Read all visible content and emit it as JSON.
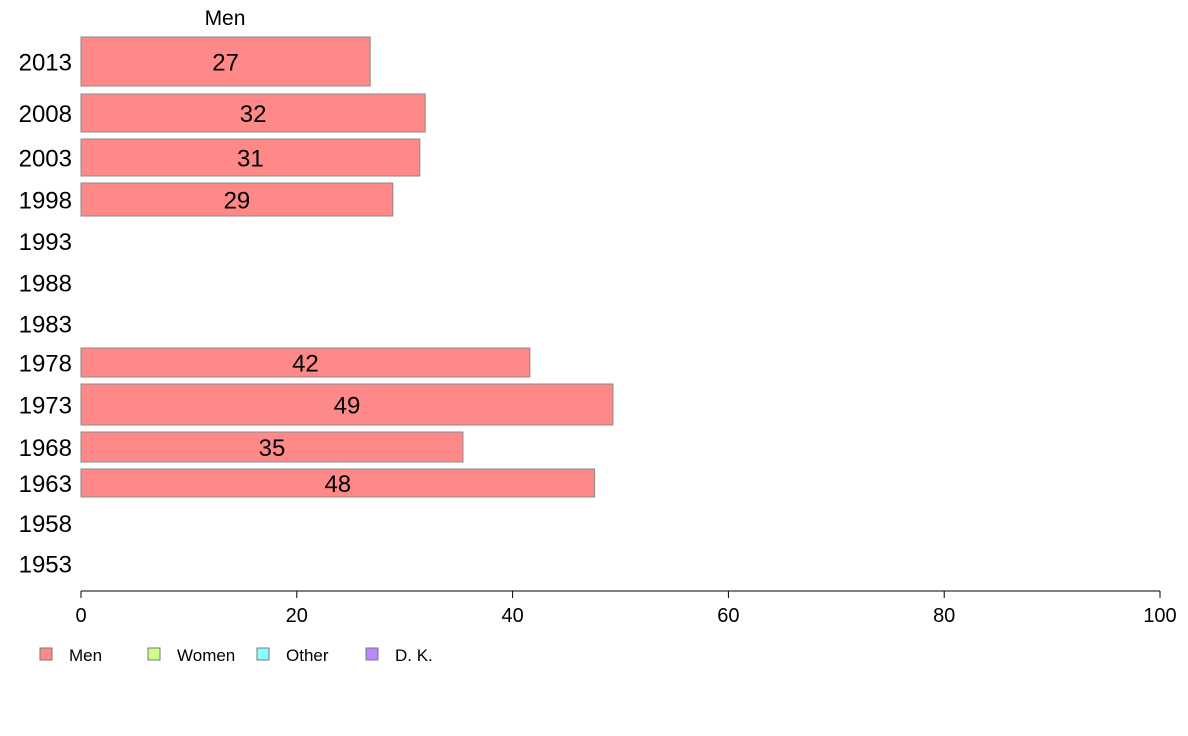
{
  "chart_data": {
    "type": "bar",
    "orientation": "horizontal",
    "header": "Men",
    "categories": [
      "2013",
      "2008",
      "2003",
      "1998",
      "1993",
      "1988",
      "1983",
      "1978",
      "1973",
      "1968",
      "1963",
      "1958",
      "1953"
    ],
    "series": [
      {
        "name": "Men",
        "color": "#ff8888",
        "values": [
          26.8,
          31.9,
          31.4,
          28.9,
          null,
          null,
          null,
          41.6,
          49.3,
          35.4,
          47.6,
          null,
          null
        ],
        "labels": [
          "27",
          "32",
          "31",
          "29",
          "",
          "",
          "",
          "42",
          "49",
          "35",
          "48",
          "",
          ""
        ]
      }
    ],
    "xlim": [
      0,
      100
    ],
    "xticks": [
      0,
      20,
      40,
      60,
      80,
      100
    ],
    "legend": {
      "placement": "bottom-left",
      "items": [
        {
          "name": "Men",
          "color": "#ff8888"
        },
        {
          "name": "Women",
          "color": "#ccff88"
        },
        {
          "name": "Other",
          "color": "#88ffff"
        },
        {
          "name": "D. K.",
          "color": "#bb88ff"
        }
      ]
    }
  }
}
